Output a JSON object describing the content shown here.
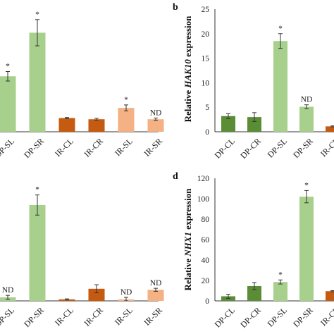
{
  "colors": {
    "dark_green": "#5b8c36",
    "light_green": "#a8d08d",
    "dark_orange": "#c55a11",
    "light_orange": "#f4b183"
  },
  "chart_data": [
    {
      "type": "bar",
      "categories": [
        "DP-SL",
        "DP-SR",
        "IR-CL",
        "IR-CR",
        "IR-SL",
        "IR-SR"
      ],
      "values": [
        9.3,
        16.6,
        2.3,
        2.1,
        4.0,
        2.1
      ],
      "errors": [
        0.8,
        2.2,
        0.1,
        0.15,
        0.5,
        0.2
      ],
      "colors": [
        "#a8d08d",
        "#a8d08d",
        "#c55a11",
        "#c55a11",
        "#f4b183",
        "#f4b183"
      ],
      "annotations": [
        "*",
        "*",
        "",
        "",
        "*",
        "ND"
      ],
      "ylim": [
        0,
        23.5
      ]
    },
    {
      "type": "bar",
      "panel_label": "b",
      "ylabel_prefix": "Relative ",
      "ylabel_gene": "HAK10",
      "ylabel_suffix": " expression",
      "categories": [
        "DP-CL",
        "DP-CR",
        "DP-SL",
        "DP-SR",
        "IR-CL"
      ],
      "values": [
        3.2,
        3.0,
        18.5,
        5.1,
        1.1
      ],
      "errors": [
        0.5,
        0.9,
        1.5,
        0.4,
        0.1
      ],
      "colors": [
        "#5b8c36",
        "#5b8c36",
        "#a8d08d",
        "#a8d08d",
        "#c55a11"
      ],
      "annotations": [
        "",
        "",
        "*",
        "ND",
        ""
      ],
      "yticks": [
        0,
        5,
        10,
        15,
        20,
        25
      ],
      "ylim": [
        0,
        25
      ]
    },
    {
      "type": "bar",
      "categories": [
        "DP-SL",
        "DP-SR",
        "IR-CL",
        "IR-CR",
        "IR-SL",
        "IR-SR"
      ],
      "values": [
        3.5,
        95,
        1.5,
        12,
        1.5,
        11
      ],
      "errors": [
        2,
        10,
        0.5,
        4,
        2,
        1.5
      ],
      "colors": [
        "#a8d08d",
        "#a8d08d",
        "#c55a11",
        "#c55a11",
        "#f4b183",
        "#f4b183"
      ],
      "annotations": [
        "ND",
        "*",
        "",
        "",
        "ND",
        "ND"
      ],
      "ylim": [
        0,
        125
      ]
    },
    {
      "type": "bar",
      "panel_label": "d",
      "ylabel_prefix": "Relative ",
      "ylabel_gene": "NHX1",
      "ylabel_suffix": " expression",
      "categories": [
        "DP-CL",
        "DP-CR",
        "DP-SL",
        "DP-SR",
        "IR-CL"
      ],
      "values": [
        4.5,
        14.5,
        18.5,
        102,
        9.5
      ],
      "errors": [
        2,
        3.5,
        2,
        6,
        0.5
      ],
      "colors": [
        "#5b8c36",
        "#5b8c36",
        "#a8d08d",
        "#a8d08d",
        "#c55a11"
      ],
      "annotations": [
        "",
        "",
        "*",
        "*",
        ""
      ],
      "yticks": [
        0,
        20,
        40,
        60,
        80,
        100,
        120
      ],
      "ylim": [
        0,
        120
      ]
    }
  ]
}
